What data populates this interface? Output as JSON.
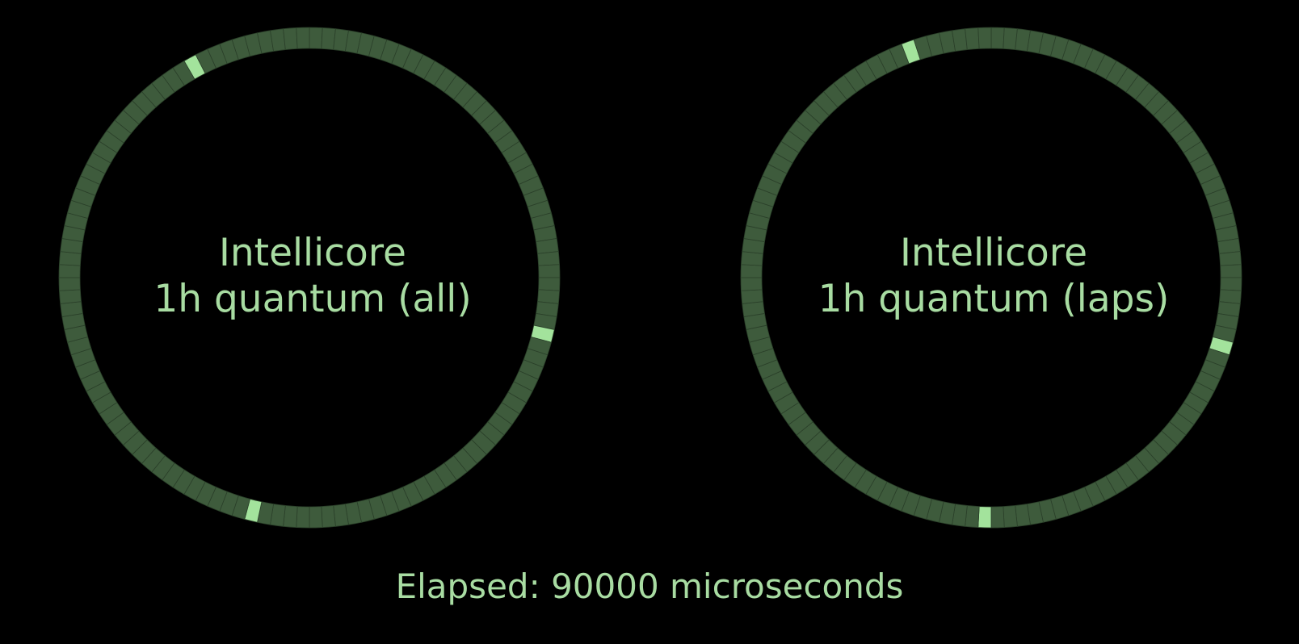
{
  "theme": {
    "background": "#000000",
    "text_color": "#a8dca2",
    "segment_color": "#3e5b3c",
    "segment_border": "#2a3f29",
    "highlight_color": "#a3e39c"
  },
  "dials": [
    {
      "name": "Intellicore",
      "subtitle": "1h quantum (all)",
      "segments": 120,
      "highlighted_segments": [
        110,
        34,
        64
      ]
    },
    {
      "name": "Intellicore",
      "subtitle": "1h quantum (laps)",
      "segments": 120,
      "highlighted_segments": [
        113,
        35,
        60
      ]
    }
  ],
  "status": {
    "elapsed_text": "Elapsed: 90000 microseconds"
  }
}
